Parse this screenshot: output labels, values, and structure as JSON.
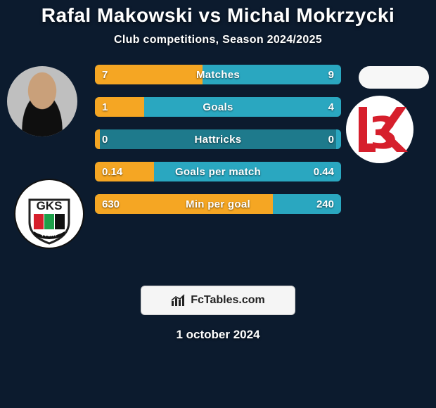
{
  "colors": {
    "card_bg": "#0c1b2e",
    "title_color": "#ffffff",
    "subtitle_color": "#ffffff",
    "bar_track": "#1e7a8c",
    "seg_left": "#f5a623",
    "seg_right": "#2aa7c0",
    "bar_label_color": "#ffffff",
    "value_color": "#ffffff",
    "footer_bg": "#f5f5f5",
    "footer_border": "#cccccc",
    "footer_text": "#222222",
    "date_color": "#ffffff",
    "crest_left_bg": "#ffffff",
    "crest_right_bg": "#ffffff",
    "crest_right_accent": "#d61f2c"
  },
  "title": {
    "text": "Rafal Makowski vs Michal Mokrzycki",
    "fontsize": 28
  },
  "subtitle": {
    "text": "Club competitions, Season 2024/2025",
    "fontsize": 16
  },
  "bars": {
    "label_fontsize": 15,
    "value_fontsize": 15,
    "rows": [
      {
        "label": "Matches",
        "left_text": "7",
        "right_text": "9",
        "left_frac": 0.4375,
        "right_frac": 0.5625
      },
      {
        "label": "Goals",
        "left_text": "1",
        "right_text": "4",
        "left_frac": 0.2,
        "right_frac": 0.8
      },
      {
        "label": "Hattricks",
        "left_text": "0",
        "right_text": "0",
        "left_frac": 0.02,
        "right_frac": 0.02
      },
      {
        "label": "Goals per match",
        "left_text": "0.14",
        "right_text": "0.44",
        "left_frac": 0.24,
        "right_frac": 0.76
      },
      {
        "label": "Min per goal",
        "left_text": "630",
        "right_text": "240",
        "left_frac": 0.724,
        "right_frac": 0.276
      }
    ]
  },
  "footer": {
    "brand_prefix": "Fc",
    "brand_suffix": "Tables.com",
    "fontsize": 16
  },
  "date": {
    "text": "1 october 2024",
    "fontsize": 17
  },
  "crest_left": {
    "text_top": "GKS",
    "text_bottom": "TYCHY"
  }
}
